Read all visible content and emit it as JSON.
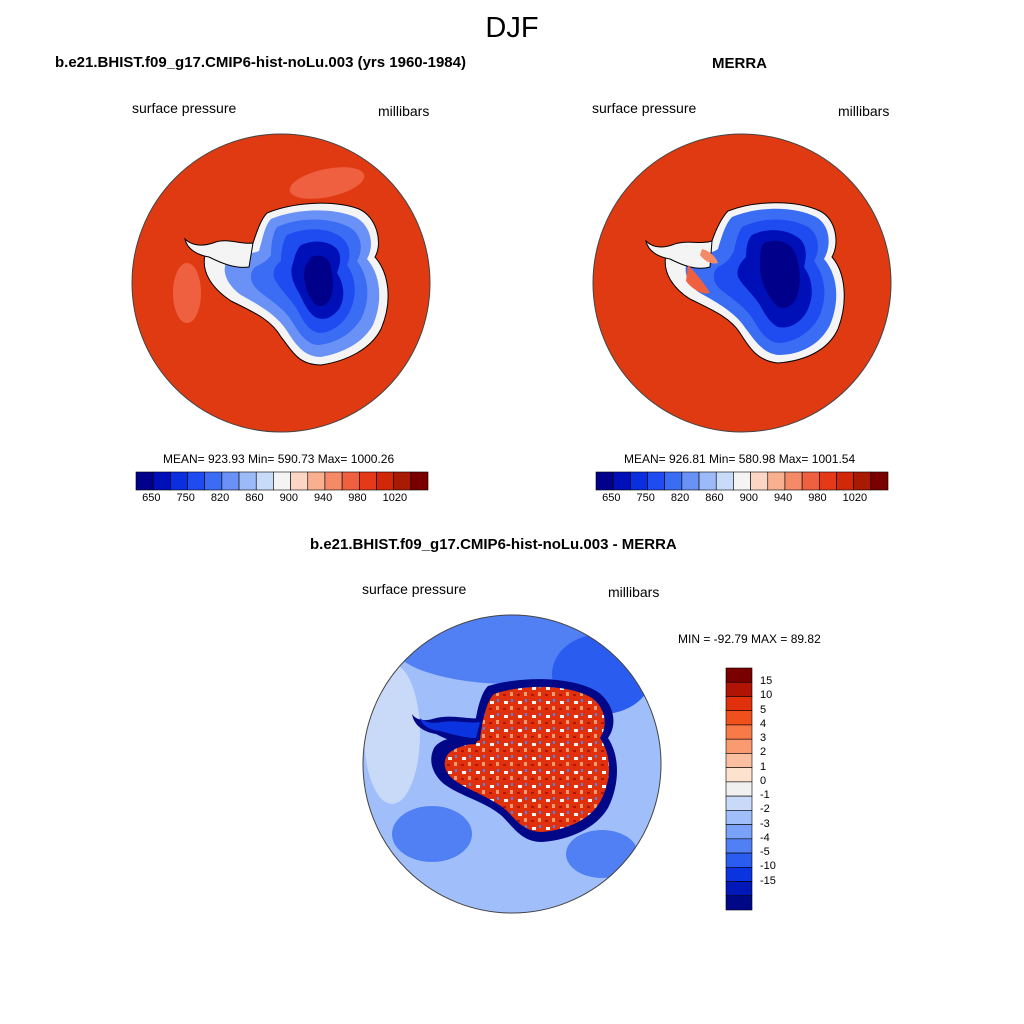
{
  "figure": {
    "title": "DJF",
    "colors": {
      "land_red": "#e03a12",
      "dark_blue": "#00088c",
      "coast": "#000000"
    }
  },
  "panels": [
    {
      "id": "model",
      "title": "b.e21.BHIST.f09_g17.CMIP6-hist-noLu.003 (yrs 1960-1984)",
      "left_label": "surface pressure",
      "right_label": "millibars",
      "stats": "MEAN= 923.93  Min= 590.73  Max= 1000.26"
    },
    {
      "id": "obs",
      "title": "MERRA",
      "left_label": "surface pressure",
      "right_label": "millibars",
      "stats": "MEAN= 926.81  Min= 580.98  Max= 1001.54"
    },
    {
      "id": "diff",
      "title": "b.e21.BHIST.f09_g17.CMIP6-hist-noLu.003 - MERRA",
      "left_label": "surface pressure",
      "right_label": "millibars",
      "stats": "MIN = -92.79 MAX =  89.82"
    }
  ],
  "abs_colorbar": {
    "colors": [
      "#00008a",
      "#0010b8",
      "#0a2ee0",
      "#1e4cf0",
      "#3a6cf4",
      "#6a92f6",
      "#9cbaf8",
      "#c8dcfa",
      "#f4f4f4",
      "#fbd6c4",
      "#f8b090",
      "#f48a68",
      "#ee6040",
      "#e43a18",
      "#d02808",
      "#a81a04",
      "#7a0000"
    ],
    "tick_labels": [
      "650",
      "750",
      "820",
      "860",
      "900",
      "940",
      "980",
      "1020"
    ]
  },
  "diff_colorbar": {
    "colors": [
      "#7a0000",
      "#b01404",
      "#e0300c",
      "#f0501c",
      "#f87a48",
      "#fa9a70",
      "#fcc0a0",
      "#fde2d0",
      "#f0f0f0",
      "#c8daf8",
      "#a0befa",
      "#7aa2f8",
      "#5080f4",
      "#2a5cf0",
      "#0a34e0",
      "#0018b8",
      "#000888"
    ],
    "tick_labels": [
      "15",
      "10",
      "5",
      "4",
      "3",
      "2",
      "1",
      "0",
      "-1",
      "-2",
      "-3",
      "-4",
      "-5",
      "-10",
      "-15"
    ]
  },
  "chart_data": [
    {
      "type": "heatmap",
      "title": "b.e21.BHIST.f09_g17.CMIP6-hist-noLu.003 (yrs 1960-1984)",
      "variable": "surface pressure",
      "units": "millibars",
      "projection": "south polar stereographic",
      "mean": 923.93,
      "min": 590.73,
      "max": 1000.26,
      "colorbar_ticks": [
        650,
        750,
        820,
        860,
        900,
        940,
        980,
        1020
      ]
    },
    {
      "type": "heatmap",
      "title": "MERRA",
      "variable": "surface pressure",
      "units": "millibars",
      "projection": "south polar stereographic",
      "mean": 926.81,
      "min": 580.98,
      "max": 1001.54,
      "colorbar_ticks": [
        650,
        750,
        820,
        860,
        900,
        940,
        980,
        1020
      ]
    },
    {
      "type": "heatmap",
      "title": "b.e21.BHIST.f09_g17.CMIP6-hist-noLu.003 - MERRA",
      "variable": "surface pressure",
      "units": "millibars",
      "projection": "south polar stereographic",
      "min": -92.79,
      "max": 89.82,
      "colorbar_ticks": [
        15,
        10,
        5,
        4,
        3,
        2,
        1,
        0,
        -1,
        -2,
        -3,
        -4,
        -5,
        -10,
        -15
      ]
    }
  ]
}
